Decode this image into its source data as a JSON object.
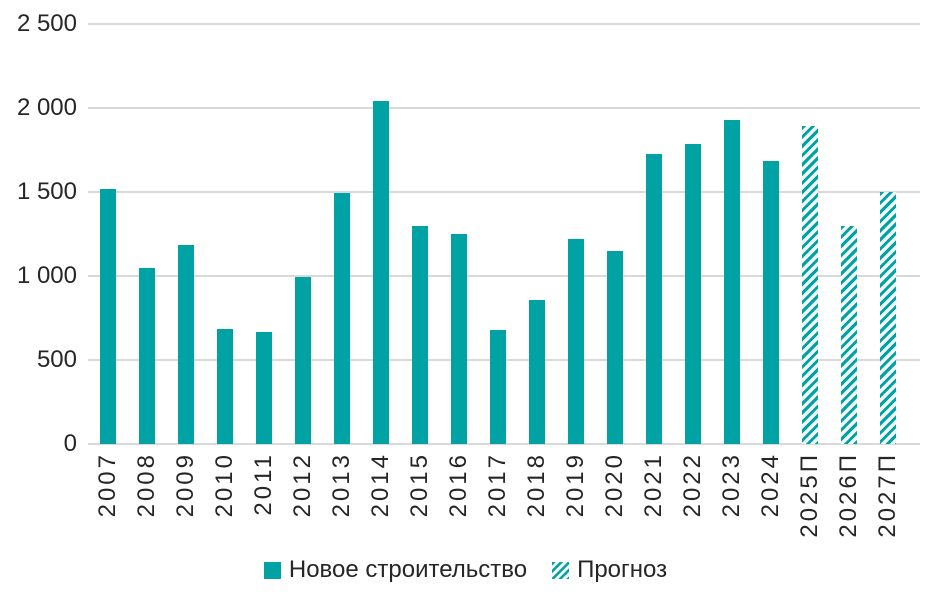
{
  "colors": {
    "bar_teal": "#00a2a4",
    "hatch_background": "#f2f6f5",
    "gridline": "#d9d9d9",
    "text": "#262626",
    "background": "#ffffff"
  },
  "chart_data": {
    "type": "bar",
    "title": "",
    "xlabel": "",
    "ylabel": "",
    "categories": [
      "2007",
      "2008",
      "2009",
      "2010",
      "2011",
      "2012",
      "2013",
      "2014",
      "2015",
      "2016",
      "2017",
      "2018",
      "2019",
      "2020",
      "2021",
      "2022",
      "2023",
      "2024",
      "2025П",
      "2026П",
      "2027П"
    ],
    "series": [
      {
        "name": "Новое строительство",
        "pattern": "solid",
        "values": [
          1520,
          1050,
          1185,
          685,
          665,
          995,
          1495,
          2040,
          1300,
          1250,
          680,
          860,
          1220,
          1150,
          1725,
          1785,
          1930,
          1685,
          null,
          null,
          null
        ]
      },
      {
        "name": "Прогноз",
        "pattern": "hatched",
        "values": [
          null,
          null,
          null,
          null,
          null,
          null,
          null,
          null,
          null,
          null,
          null,
          null,
          null,
          null,
          null,
          null,
          null,
          null,
          1895,
          1300,
          1500
        ]
      }
    ],
    "ylim": [
      0,
      2500
    ],
    "yticks": [
      {
        "value": 0,
        "label": "0"
      },
      {
        "value": 500,
        "label": "500"
      },
      {
        "value": 1000,
        "label": "1 000"
      },
      {
        "value": 1500,
        "label": "1 500"
      },
      {
        "value": 2000,
        "label": "2 000"
      },
      {
        "value": 2500,
        "label": "2 500"
      }
    ],
    "grid": true,
    "legend_position": "bottom-center",
    "xtick_rotation_deg": -90
  },
  "legend": {
    "items": [
      {
        "label": "Новое строительство",
        "swatch": "solid"
      },
      {
        "label": "Прогноз",
        "swatch": "hatched"
      }
    ]
  }
}
